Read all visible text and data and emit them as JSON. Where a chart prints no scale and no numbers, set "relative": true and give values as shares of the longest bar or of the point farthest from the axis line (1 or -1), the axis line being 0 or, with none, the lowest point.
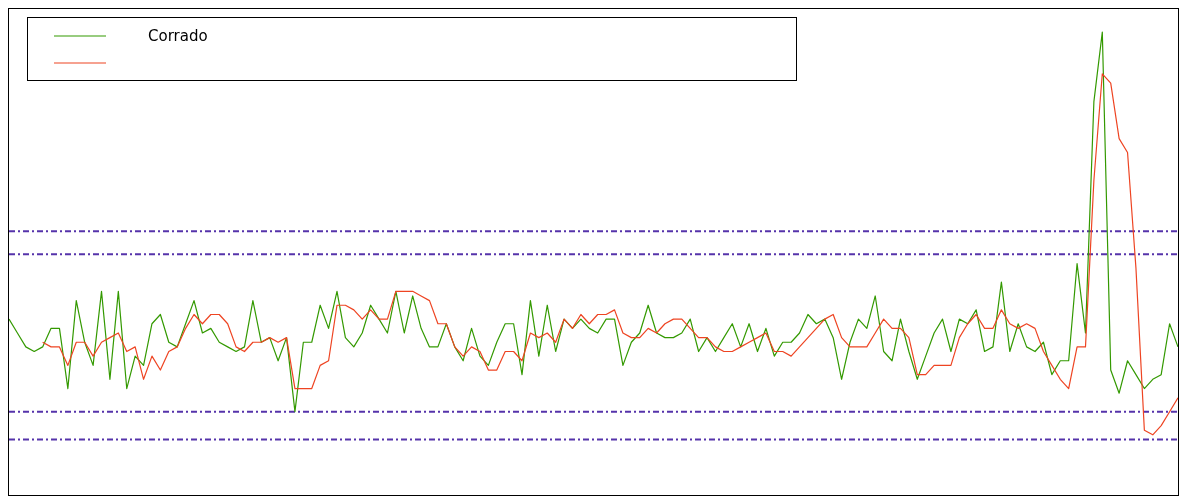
{
  "chart_data": {
    "type": "line",
    "relative": true,
    "legend": "top left",
    "grid": false,
    "marker": "none",
    "line_style": "solid",
    "categories": [
      null,
      null,
      null,
      null,
      null,
      null,
      null,
      null,
      null,
      null,
      null,
      null,
      null,
      null,
      null,
      null,
      null,
      null,
      null,
      null,
      null,
      null,
      null,
      null,
      null,
      null,
      null,
      null,
      null,
      null,
      null,
      null,
      null,
      null,
      null,
      null,
      null,
      null,
      null,
      null,
      null,
      null,
      null,
      null,
      null,
      null,
      null,
      null,
      null,
      null,
      null,
      null,
      null,
      null,
      null,
      null,
      null,
      null,
      null,
      null,
      null,
      null,
      null,
      null,
      null,
      null,
      null,
      null,
      null,
      null,
      null,
      null,
      null,
      null,
      null,
      null,
      null,
      null,
      null,
      null,
      null,
      null,
      null,
      null,
      null,
      null,
      null,
      null,
      null,
      null,
      null,
      null,
      null,
      null,
      null,
      null,
      null,
      null,
      null,
      null,
      null,
      null,
      null,
      null,
      null,
      null,
      null,
      null,
      null,
      null,
      null,
      null,
      null,
      null,
      null,
      null,
      null,
      null,
      null,
      null,
      null,
      null,
      null,
      null,
      null,
      null,
      null,
      null,
      null,
      null,
      null,
      null,
      null,
      null,
      null,
      null,
      null,
      null,
      null,
      null
    ],
    "series": [
      {
        "name": "Corrado",
        "color": "#339900",
        "values": [
          0.38,
          0.35,
          0.32,
          0.31,
          0.32,
          0.36,
          0.36,
          0.23,
          0.42,
          0.33,
          0.28,
          0.44,
          0.25,
          0.44,
          0.23,
          0.3,
          0.28,
          0.37,
          0.39,
          0.33,
          0.32,
          0.37,
          0.42,
          0.35,
          0.36,
          0.33,
          0.32,
          0.31,
          0.32,
          0.42,
          0.33,
          0.34,
          0.29,
          0.34,
          0.18,
          0.33,
          0.33,
          0.41,
          0.36,
          0.44,
          0.34,
          0.32,
          0.35,
          0.41,
          0.38,
          0.35,
          0.44,
          0.35,
          0.43,
          0.36,
          0.32,
          0.32,
          0.37,
          0.32,
          0.29,
          0.36,
          0.3,
          0.28,
          0.33,
          0.37,
          0.37,
          0.26,
          0.42,
          0.3,
          0.41,
          0.31,
          0.38,
          0.36,
          0.38,
          0.36,
          0.35,
          0.38,
          0.38,
          0.28,
          0.33,
          0.35,
          0.41,
          0.35,
          0.34,
          0.34,
          0.35,
          0.38,
          0.31,
          0.34,
          0.31,
          0.34,
          0.37,
          0.32,
          0.37,
          0.31,
          0.36,
          0.3,
          0.33,
          0.33,
          0.35,
          0.39,
          0.37,
          0.38,
          0.34,
          0.25,
          0.33,
          0.38,
          0.36,
          0.43,
          0.31,
          0.29,
          0.38,
          0.31,
          0.25,
          0.3,
          0.35,
          0.38,
          0.31,
          0.38,
          0.37,
          0.4,
          0.31,
          0.32,
          0.46,
          0.31,
          0.37,
          0.32,
          0.31,
          0.33,
          0.26,
          0.29,
          0.29,
          0.5,
          0.35,
          0.85,
          1,
          0.27,
          0.22,
          0.29,
          0.26,
          0.23,
          0.25,
          0.26,
          0.37,
          0.32
        ]
      },
      {
        "color": "#ee4422",
        "values": [
          null,
          null,
          null,
          null,
          0.33,
          0.32,
          0.32,
          0.28,
          0.33,
          0.33,
          0.3,
          0.33,
          0.34,
          0.35,
          0.31,
          0.32,
          0.25,
          0.3,
          0.27,
          0.31,
          0.32,
          0.36,
          0.39,
          0.37,
          0.39,
          0.39,
          0.37,
          0.32,
          0.31,
          0.33,
          0.33,
          0.34,
          0.33,
          0.34,
          0.23,
          0.23,
          0.23,
          0.28,
          0.29,
          0.41,
          0.41,
          0.4,
          0.38,
          0.4,
          0.38,
          0.38,
          0.44,
          0.44,
          0.44,
          0.43,
          0.42,
          0.37,
          0.37,
          0.32,
          0.3,
          0.32,
          0.31,
          0.27,
          0.27,
          0.31,
          0.31,
          0.29,
          0.35,
          0.34,
          0.35,
          0.33,
          0.38,
          0.36,
          0.39,
          0.37,
          0.39,
          0.39,
          0.4,
          0.35,
          0.34,
          0.34,
          0.36,
          0.35,
          0.37,
          0.38,
          0.38,
          0.36,
          0.34,
          0.34,
          0.32,
          0.31,
          0.31,
          0.32,
          0.33,
          0.34,
          0.35,
          0.31,
          0.31,
          0.3,
          0.32,
          0.34,
          0.36,
          0.38,
          0.39,
          0.34,
          0.32,
          0.32,
          0.32,
          0.35,
          0.38,
          0.36,
          0.36,
          0.34,
          0.26,
          0.26,
          0.28,
          0.28,
          0.28,
          0.34,
          0.37,
          0.39,
          0.36,
          0.36,
          0.4,
          0.37,
          0.36,
          0.37,
          0.36,
          0.31,
          0.28,
          0.25,
          0.23,
          0.32,
          0.32,
          0.68,
          0.91,
          0.89,
          0.77,
          0.74,
          0.49,
          0.14,
          0.13,
          0.15,
          0.18,
          0.21
        ]
      }
    ],
    "ref_lines": [
      {
        "axis": "y",
        "value": 0.57,
        "color": "#5533aa",
        "line_style": "dashdot"
      },
      {
        "axis": "y",
        "value": 0.52,
        "color": "#5533aa",
        "line_style": "dashdot"
      },
      {
        "axis": "y",
        "value": 0.18,
        "color": "#5533aa",
        "line_style": "dashdot"
      },
      {
        "axis": "y",
        "value": 0.12,
        "color": "#5533aa",
        "line_style": "dashdot"
      }
    ]
  }
}
